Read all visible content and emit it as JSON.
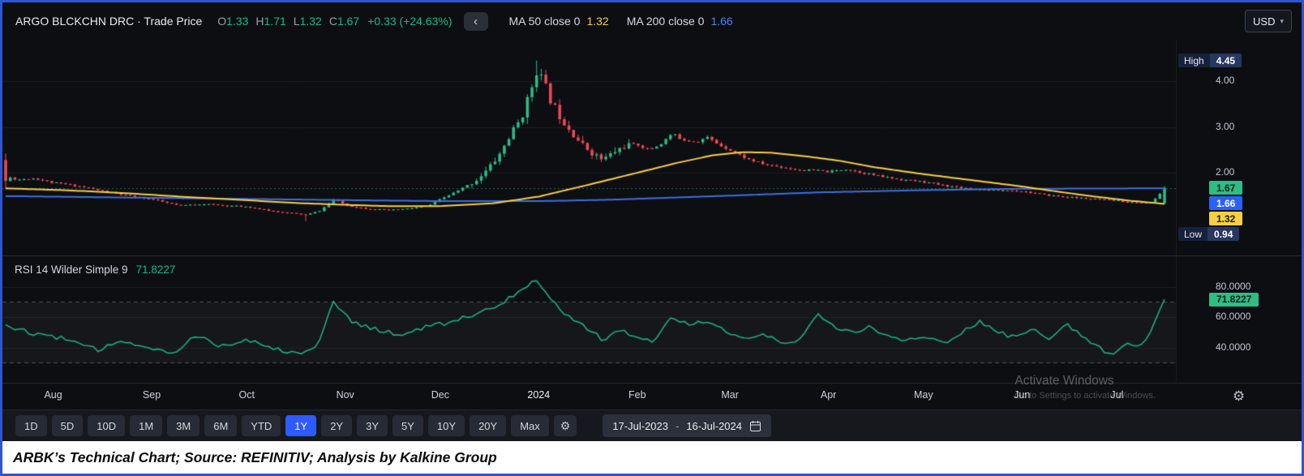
{
  "header": {
    "symbol_title": "ARGO BLCKCHN DRC · Trade Price",
    "ohlc": {
      "o_label": "O",
      "o": "1.33",
      "h_label": "H",
      "h": "1.71",
      "l_label": "L",
      "l": "1.32",
      "c_label": "C",
      "c": "1.67",
      "change": "+0.33 (+24.63%)"
    },
    "ma50": {
      "label": "MA 50 close 0",
      "value": "1.32"
    },
    "ma200": {
      "label": "MA 200 close 0",
      "value": "1.66"
    },
    "currency": {
      "value": "USD"
    }
  },
  "icons": {
    "chevron_left": "‹",
    "caret_down": "▾",
    "gear": "⚙"
  },
  "price_axis": {
    "high_label": "High",
    "high_value": "4.45",
    "ticks": [
      "4.00",
      "3.00",
      "2.00"
    ],
    "close_badge": "1.67",
    "ma200_badge": "1.66",
    "ma50_badge": "1.32",
    "low_label": "Low",
    "low_value": "0.94"
  },
  "rsi": {
    "label": "RSI 14 Wilder Simple 9",
    "value": "71.8227",
    "ticks": [
      "80.0000",
      "60.0000",
      "40.0000"
    ],
    "badge": "71.8227"
  },
  "time_axis": {
    "labels": [
      "Aug",
      "Sep",
      "Oct",
      "Nov",
      "Dec",
      "2024",
      "Feb",
      "Mar",
      "Apr",
      "May",
      "Jun",
      "Jul"
    ]
  },
  "watermark": {
    "line1": "Activate Windows",
    "line2": "Go to Settings to activate Windows."
  },
  "toolbar": {
    "ranges": [
      "1D",
      "5D",
      "10D",
      "1M",
      "3M",
      "6M",
      "YTD",
      "1Y",
      "2Y",
      "3Y",
      "5Y",
      "10Y",
      "20Y",
      "Max"
    ],
    "selected": "1Y",
    "date_from": "17-Jul-2023",
    "date_sep": "-",
    "date_to": "16-Jul-2024"
  },
  "caption": "ARBK’s Technical Chart; Source: REFINITIV; Analysis by Kalkine Group",
  "colors": {
    "candle_up": "#2ebd85",
    "candle_down": "#f0485a",
    "ma50": "#f6cf45",
    "ma200": "#3d6fe0",
    "rsi_line": "#1fae7e",
    "accent_blue": "#2d5bff",
    "frame_blue": "#2e56cf",
    "badge_green": "#2ebd85",
    "badge_yellow": "#f6cf45",
    "badge_blue": "#2962ff",
    "text_green": "#0fbf80"
  },
  "chart_data": {
    "type": "candlestick",
    "title": "ARGO BLCKCHN DRC · Trade Price, 1Y daily, with MA50, MA200 and RSI(14)",
    "currency": "USD",
    "range_shown": {
      "from": "17-Jul-2023",
      "to": "16-Jul-2024"
    },
    "last_bar": {
      "open": 1.33,
      "high": 1.71,
      "low": 1.32,
      "close": 1.67,
      "change": "+0.33",
      "change_pct": "+24.63%"
    },
    "period_high": 4.45,
    "period_low": 0.94,
    "ma50_last": 1.32,
    "ma200_last": 1.66,
    "rsi_last": 71.8227,
    "bars": 252,
    "seed": 11,
    "price_scale_range": [
      0.3,
      4.8
    ],
    "price_axis_ticks": [
      4.0,
      3.0,
      2.0
    ],
    "vol_window": [
      0.4,
      0.54
    ],
    "anchors": {
      "peak_t": 0.458,
      "peak_high": 4.45,
      "low_t": 0.26,
      "low_low": 0.94,
      "first_bar": {
        "open": 2.28,
        "close": 1.82,
        "high": 2.42,
        "low": 1.64
      }
    },
    "close_path": [
      [
        0,
        1.92
      ],
      [
        0.01,
        1.85
      ],
      [
        0.025,
        1.88
      ],
      [
        0.041,
        1.78
      ],
      [
        0.06,
        1.72
      ],
      [
        0.08,
        1.62
      ],
      [
        0.1,
        1.52
      ],
      [
        0.126,
        1.42
      ],
      [
        0.15,
        1.28
      ],
      [
        0.17,
        1.32
      ],
      [
        0.19,
        1.28
      ],
      [
        0.208,
        1.26
      ],
      [
        0.225,
        1.18
      ],
      [
        0.245,
        1.12
      ],
      [
        0.26,
        1.08
      ],
      [
        0.272,
        1.18
      ],
      [
        0.283,
        1.42
      ],
      [
        0.295,
        1.28
      ],
      [
        0.31,
        1.22
      ],
      [
        0.33,
        1.18
      ],
      [
        0.35,
        1.22
      ],
      [
        0.365,
        1.28
      ],
      [
        0.375,
        1.42
      ],
      [
        0.39,
        1.6
      ],
      [
        0.405,
        1.82
      ],
      [
        0.415,
        2.05
      ],
      [
        0.425,
        2.35
      ],
      [
        0.435,
        2.8
      ],
      [
        0.445,
        3.2
      ],
      [
        0.452,
        3.7
      ],
      [
        0.458,
        4.25
      ],
      [
        0.464,
        4.0
      ],
      [
        0.47,
        3.6
      ],
      [
        0.478,
        3.25
      ],
      [
        0.487,
        2.95
      ],
      [
        0.497,
        2.62
      ],
      [
        0.508,
        2.4
      ],
      [
        0.515,
        2.28
      ],
      [
        0.525,
        2.45
      ],
      [
        0.535,
        2.6
      ],
      [
        0.545,
        2.62
      ],
      [
        0.555,
        2.5
      ],
      [
        0.565,
        2.62
      ],
      [
        0.575,
        2.85
      ],
      [
        0.585,
        2.72
      ],
      [
        0.597,
        2.68
      ],
      [
        0.605,
        2.78
      ],
      [
        0.615,
        2.62
      ],
      [
        0.625,
        2.5
      ],
      [
        0.64,
        2.3
      ],
      [
        0.655,
        2.18
      ],
      [
        0.67,
        2.12
      ],
      [
        0.685,
        2.06
      ],
      [
        0.7,
        2.05
      ],
      [
        0.71,
        2.02
      ],
      [
        0.725,
        2.08
      ],
      [
        0.74,
        2.0
      ],
      [
        0.755,
        1.92
      ],
      [
        0.77,
        1.86
      ],
      [
        0.792,
        1.8
      ],
      [
        0.81,
        1.72
      ],
      [
        0.83,
        1.66
      ],
      [
        0.85,
        1.62
      ],
      [
        0.877,
        1.6
      ],
      [
        0.895,
        1.52
      ],
      [
        0.915,
        1.47
      ],
      [
        0.935,
        1.43
      ],
      [
        0.959,
        1.39
      ],
      [
        0.975,
        1.34
      ],
      [
        0.99,
        1.36
      ],
      [
        1,
        1.67
      ]
    ],
    "ma50_path": [
      [
        0,
        1.66
      ],
      [
        0.05,
        1.62
      ],
      [
        0.1,
        1.56
      ],
      [
        0.15,
        1.48
      ],
      [
        0.208,
        1.4
      ],
      [
        0.25,
        1.34
      ],
      [
        0.293,
        1.3
      ],
      [
        0.33,
        1.27
      ],
      [
        0.375,
        1.27
      ],
      [
        0.42,
        1.33
      ],
      [
        0.46,
        1.48
      ],
      [
        0.5,
        1.72
      ],
      [
        0.545,
        2.0
      ],
      [
        0.58,
        2.22
      ],
      [
        0.61,
        2.38
      ],
      [
        0.635,
        2.45
      ],
      [
        0.66,
        2.44
      ],
      [
        0.69,
        2.36
      ],
      [
        0.72,
        2.26
      ],
      [
        0.75,
        2.12
      ],
      [
        0.792,
        1.97
      ],
      [
        0.83,
        1.85
      ],
      [
        0.877,
        1.7
      ],
      [
        0.91,
        1.58
      ],
      [
        0.94,
        1.48
      ],
      [
        0.97,
        1.39
      ],
      [
        1,
        1.32
      ]
    ],
    "ma200_path": [
      [
        0,
        1.49
      ],
      [
        0.1,
        1.46
      ],
      [
        0.2,
        1.43
      ],
      [
        0.3,
        1.4
      ],
      [
        0.375,
        1.38
      ],
      [
        0.46,
        1.38
      ],
      [
        0.52,
        1.41
      ],
      [
        0.58,
        1.46
      ],
      [
        0.625,
        1.5
      ],
      [
        0.7,
        1.57
      ],
      [
        0.792,
        1.62
      ],
      [
        0.877,
        1.65
      ],
      [
        1,
        1.66
      ]
    ],
    "rsi": {
      "range": [
        20,
        97
      ],
      "bands": [
        70,
        30
      ],
      "axis_ticks": [
        80.0,
        60.0,
        40.0
      ],
      "path": [
        [
          0,
          55
        ],
        [
          0.02,
          50
        ],
        [
          0.05,
          46
        ],
        [
          0.08,
          38
        ],
        [
          0.1,
          45
        ],
        [
          0.12,
          41
        ],
        [
          0.145,
          36
        ],
        [
          0.165,
          49
        ],
        [
          0.185,
          41
        ],
        [
          0.21,
          45
        ],
        [
          0.235,
          39
        ],
        [
          0.255,
          36
        ],
        [
          0.27,
          43
        ],
        [
          0.283,
          70
        ],
        [
          0.3,
          56
        ],
        [
          0.32,
          52
        ],
        [
          0.34,
          48
        ],
        [
          0.36,
          53
        ],
        [
          0.38,
          56
        ],
        [
          0.4,
          61
        ],
        [
          0.42,
          66
        ],
        [
          0.435,
          73
        ],
        [
          0.45,
          81
        ],
        [
          0.458,
          85
        ],
        [
          0.468,
          74
        ],
        [
          0.48,
          64
        ],
        [
          0.5,
          54
        ],
        [
          0.515,
          45
        ],
        [
          0.53,
          51
        ],
        [
          0.545,
          48
        ],
        [
          0.56,
          44
        ],
        [
          0.575,
          61
        ],
        [
          0.59,
          55
        ],
        [
          0.605,
          58
        ],
        [
          0.625,
          50
        ],
        [
          0.64,
          45
        ],
        [
          0.655,
          49
        ],
        [
          0.67,
          42
        ],
        [
          0.685,
          46
        ],
        [
          0.7,
          62
        ],
        [
          0.715,
          53
        ],
        [
          0.73,
          50
        ],
        [
          0.745,
          54
        ],
        [
          0.76,
          48
        ],
        [
          0.775,
          44
        ],
        [
          0.792,
          47
        ],
        [
          0.81,
          43
        ],
        [
          0.825,
          50
        ],
        [
          0.84,
          57
        ],
        [
          0.855,
          50
        ],
        [
          0.87,
          47
        ],
        [
          0.885,
          52
        ],
        [
          0.9,
          46
        ],
        [
          0.915,
          57
        ],
        [
          0.93,
          46
        ],
        [
          0.945,
          40
        ],
        [
          0.955,
          34
        ],
        [
          0.965,
          43
        ],
        [
          0.975,
          40
        ],
        [
          0.985,
          45
        ],
        [
          1,
          71.8227
        ]
      ]
    },
    "month_fractions": [
      0.041,
      0.126,
      0.208,
      0.293,
      0.375,
      0.46,
      0.545,
      0.625,
      0.71,
      0.792,
      0.877,
      0.959
    ]
  }
}
